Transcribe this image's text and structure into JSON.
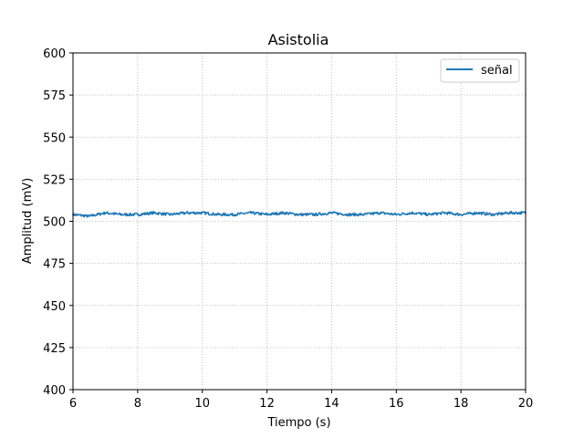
{
  "chart_data": {
    "type": "line",
    "title": "Asistolia",
    "xlabel": "Tiempo (s)",
    "ylabel": "Amplitud (mV)",
    "xlim": [
      6,
      20
    ],
    "ylim": [
      400,
      600
    ],
    "xticks": [
      6,
      8,
      10,
      12,
      14,
      16,
      18,
      20
    ],
    "yticks": [
      400,
      425,
      450,
      475,
      500,
      525,
      550,
      575,
      600
    ],
    "grid": true,
    "legend_position": "top-right",
    "series": [
      {
        "name": "señal",
        "color": "#1f77b4",
        "x": [
          6.0,
          6.5,
          7.0,
          7.5,
          8.0,
          8.5,
          9.0,
          9.5,
          10.0,
          10.5,
          11.0,
          11.5,
          12.0,
          12.5,
          13.0,
          13.5,
          14.0,
          14.5,
          15.0,
          15.5,
          16.0,
          16.5,
          17.0,
          17.5,
          18.0,
          18.5,
          19.0,
          19.5,
          20.0
        ],
        "y": [
          504,
          503,
          505,
          504,
          504,
          505,
          504,
          505,
          505,
          504,
          504,
          505,
          504,
          505,
          504,
          504,
          505,
          504,
          504,
          505,
          504,
          505,
          504,
          505,
          504,
          505,
          504,
          505,
          505
        ]
      }
    ]
  }
}
